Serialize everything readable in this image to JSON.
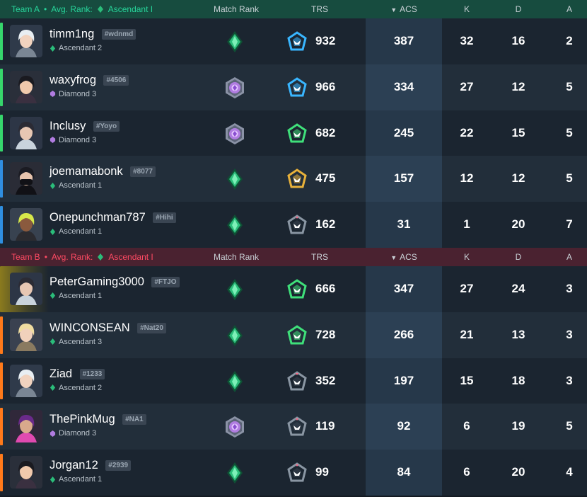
{
  "colors": {
    "team_a": "#27d49a",
    "team_b": "#ff4a63",
    "ascendant": "#2bbd7a",
    "diamond": "#b07ce0"
  },
  "team_a": {
    "label": "Team A",
    "separator": "•",
    "avg_label": "Avg. Rank:",
    "avg_rank": "Ascendant I",
    "headers": {
      "match_rank": "Match Rank",
      "trs": "TRS",
      "acs": "ACS",
      "k": "K",
      "d": "D",
      "a": "A"
    },
    "players": [
      {
        "name": "timm1ng",
        "tag": "#wdnmd",
        "rank": "Ascendant 2",
        "rank_tier": "ascendant",
        "trs_tier": "blue",
        "trs": "932",
        "acs": "387",
        "k": "32",
        "d": "16",
        "a": "2",
        "bar": "#36d66c",
        "avatar": "white-hair"
      },
      {
        "name": "waxyfrog",
        "tag": "#4506",
        "rank": "Diamond 3",
        "rank_tier": "diamond",
        "trs_tier": "blue",
        "trs": "966",
        "acs": "334",
        "k": "27",
        "d": "12",
        "a": "5",
        "bar": "#36d66c",
        "avatar": "dark-hair"
      },
      {
        "name": "Inclusy",
        "tag": "#Yoyo",
        "rank": "Diamond 3",
        "rank_tier": "diamond",
        "trs_tier": "green",
        "trs": "682",
        "acs": "245",
        "k": "22",
        "d": "15",
        "a": "5",
        "bar": "#36d66c",
        "avatar": "cyber"
      },
      {
        "name": "joemamabonk",
        "tag": "#8077",
        "rank": "Ascendant 1",
        "rank_tier": "ascendant",
        "trs_tier": "gold",
        "trs": "475",
        "acs": "157",
        "k": "12",
        "d": "12",
        "a": "5",
        "bar": "#2f8fe0",
        "avatar": "masked"
      },
      {
        "name": "Onepunchman787",
        "tag": "#Hihi",
        "rank": "Ascendant 1",
        "rank_tier": "ascendant",
        "trs_tier": "gray",
        "trs": "162",
        "acs": "31",
        "k": "1",
        "d": "20",
        "a": "7",
        "bar": "#2f8fe0",
        "avatar": "blonde"
      }
    ]
  },
  "team_b": {
    "label": "Team B",
    "separator": "•",
    "avg_label": "Avg. Rank:",
    "avg_rank": "Ascendant I",
    "headers": {
      "match_rank": "Match Rank",
      "trs": "TRS",
      "acs": "ACS",
      "k": "K",
      "d": "D",
      "a": "A"
    },
    "players": [
      {
        "name": "PeterGaming3000",
        "tag": "#FTJO",
        "rank": "Ascendant 1",
        "rank_tier": "ascendant",
        "trs_tier": "green",
        "trs": "666",
        "acs": "347",
        "k": "27",
        "d": "24",
        "a": "3",
        "bar": "#d4a52a",
        "avatar": "cyber"
      },
      {
        "name": "WINCONSEAN",
        "tag": "#Nat20",
        "rank": "Ascendant 3",
        "rank_tier": "ascendant",
        "trs_tier": "green",
        "trs": "728",
        "acs": "266",
        "k": "21",
        "d": "13",
        "a": "3",
        "bar": "#ff7a1a",
        "avatar": "blonde-f"
      },
      {
        "name": "Ziad",
        "tag": "#1233",
        "rank": "Ascendant 2",
        "rank_tier": "ascendant",
        "trs_tier": "gray",
        "trs": "352",
        "acs": "197",
        "k": "15",
        "d": "18",
        "a": "3",
        "bar": "#ff7a1a",
        "avatar": "white-hair"
      },
      {
        "name": "ThePinkMug",
        "tag": "#NA1",
        "rank": "Diamond 3",
        "rank_tier": "diamond",
        "trs_tier": "gray",
        "trs": "119",
        "acs": "92",
        "k": "6",
        "d": "19",
        "a": "5",
        "bar": "#ff7a1a",
        "avatar": "purple"
      },
      {
        "name": "Jorgan12",
        "tag": "#2939",
        "rank": "Ascendant 1",
        "rank_tier": "ascendant",
        "trs_tier": "gray",
        "trs": "99",
        "acs": "84",
        "k": "6",
        "d": "20",
        "a": "4",
        "bar": "#ff7a1a",
        "avatar": "dark-hair"
      }
    ]
  }
}
